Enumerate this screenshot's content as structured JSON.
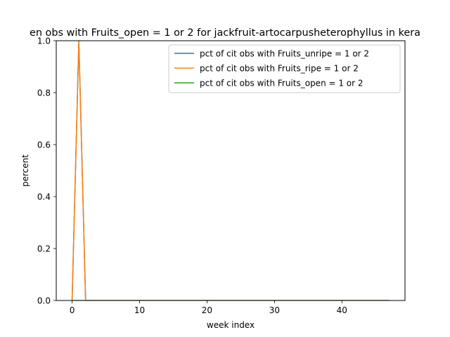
{
  "chart_data": {
    "type": "line",
    "title": "en obs with Fruits_open = 1 or 2 for jackfruit-artocarpusheterophyllus in kera",
    "xlabel": "week index",
    "ylabel": "percent",
    "xlim": [
      -2.35,
      49.35
    ],
    "ylim": [
      0,
      1.0
    ],
    "x_ticks": [
      0,
      10,
      20,
      30,
      40
    ],
    "y_ticks": [
      0.0,
      0.2,
      0.4,
      0.6,
      0.8,
      1.0
    ],
    "grid": false,
    "legend_position": "top-right",
    "x": [
      0,
      1,
      2,
      3,
      4,
      5,
      6,
      7,
      8,
      9,
      10,
      11,
      12,
      13,
      14,
      15,
      16,
      17,
      18,
      19,
      20,
      21,
      22,
      23,
      24,
      25,
      26,
      27,
      28,
      29,
      30,
      31,
      32,
      33,
      34,
      35,
      36,
      37,
      38,
      39,
      40,
      41,
      42,
      43,
      44,
      45,
      46,
      47
    ],
    "series": [
      {
        "name": "pct of cit obs with Fruits_unripe = 1 or 2",
        "color": "#1f77b4",
        "values": [
          0,
          1,
          0,
          0,
          0,
          0,
          0,
          0,
          0,
          0,
          0,
          0,
          0,
          0,
          0,
          0,
          0,
          0,
          0,
          0,
          0,
          0,
          0,
          0,
          0,
          0,
          0,
          0,
          0,
          0,
          0,
          0,
          0,
          0,
          0,
          0,
          0,
          0,
          0,
          0,
          0,
          0,
          0,
          0,
          0,
          0,
          0,
          0
        ]
      },
      {
        "name": "pct of cit obs with Fruits_ripe = 1 or 2",
        "color": "#ff7f0e",
        "values": [
          0,
          1,
          0,
          0,
          0,
          0,
          0,
          0,
          0,
          0,
          0,
          0,
          0,
          0,
          0,
          0,
          0,
          0,
          0,
          0,
          0,
          0,
          0,
          0,
          0,
          0,
          0,
          0,
          0,
          0,
          0,
          0,
          0,
          0,
          0,
          0,
          0,
          0,
          0,
          0,
          0,
          0,
          0,
          0,
          0,
          0,
          0,
          0
        ]
      },
      {
        "name": "pct of cit obs with Fruits_open = 1 or 2",
        "color": "#2ca02c",
        "values": [
          0,
          0,
          0,
          0,
          0,
          0,
          0,
          0,
          0,
          0,
          0,
          0,
          0,
          0,
          0,
          0,
          0,
          0,
          0,
          0,
          0,
          0,
          0,
          0,
          0,
          0,
          0,
          0,
          0,
          0,
          0,
          0,
          0,
          0,
          0,
          0,
          0,
          0,
          0,
          0,
          0,
          0,
          0,
          0,
          0,
          0,
          0,
          0
        ]
      }
    ]
  }
}
